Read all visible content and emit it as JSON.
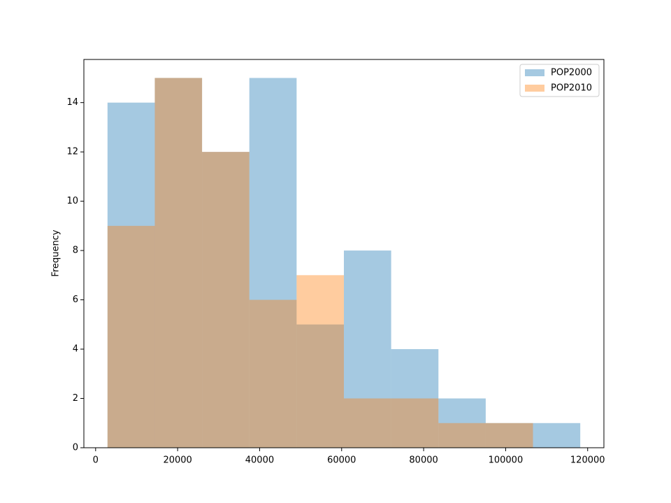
{
  "chart_data": {
    "type": "histogram",
    "ylabel": "Frequency",
    "bins": [
      2900,
      14430,
      25960,
      37490,
      49020,
      60550,
      72080,
      83610,
      95140,
      106670,
      118200
    ],
    "series": [
      {
        "name": "POP2000",
        "color": "#1f77b4",
        "values": [
          14,
          15,
          12,
          15,
          5,
          8,
          4,
          2,
          1,
          1
        ]
      },
      {
        "name": "POP2010",
        "color": "#ff7f0e",
        "values": [
          9,
          15,
          12,
          6,
          7,
          2,
          2,
          1,
          1,
          0
        ]
      }
    ],
    "alpha": 0.4,
    "xlim": [
      -2865,
      123965
    ],
    "ylim": [
      0,
      15.75
    ],
    "xticks": [
      0,
      20000,
      40000,
      60000,
      80000,
      100000,
      120000
    ],
    "yticks": [
      0,
      2,
      4,
      6,
      8,
      10,
      12,
      14
    ],
    "legend": "upper right"
  }
}
